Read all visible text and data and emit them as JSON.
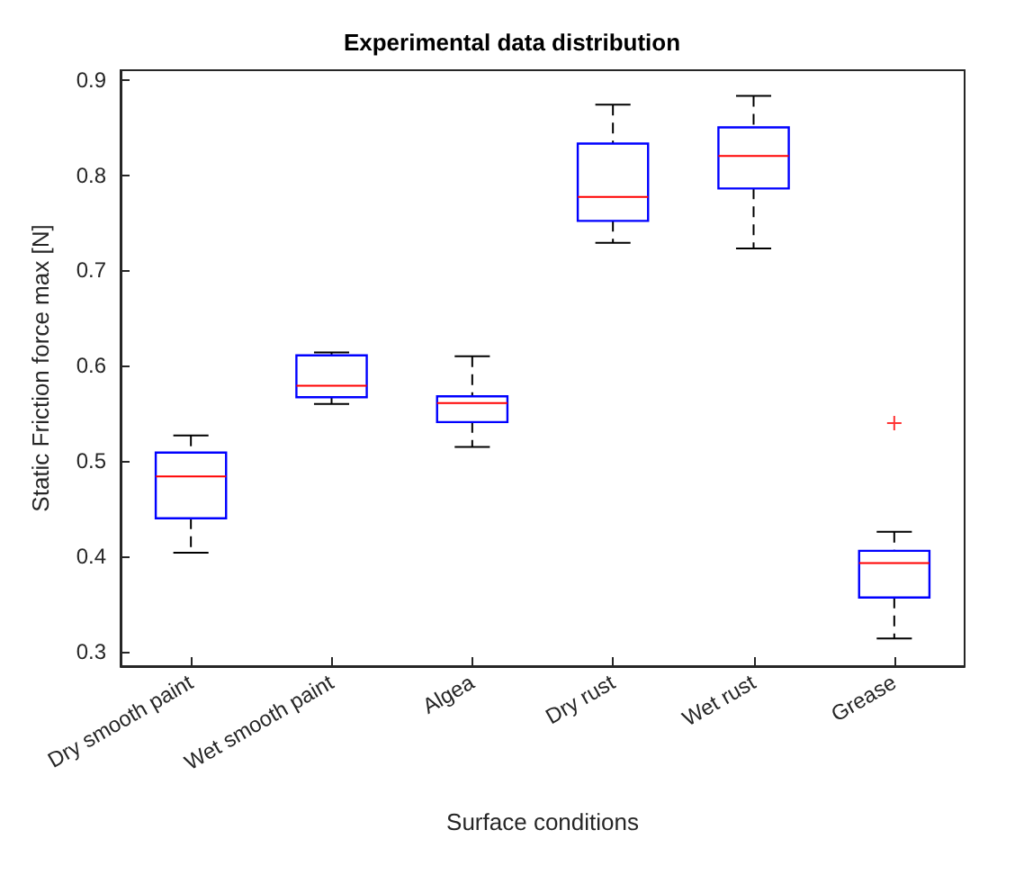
{
  "chart_data": {
    "type": "box",
    "title": "Experimental data distribution",
    "xlabel": "Surface conditions",
    "ylabel": "Static Friction force max [N]",
    "categories": [
      "Dry smooth paint",
      "Wet smooth paint",
      "Algea",
      "Dry rust",
      "Wet rust",
      "Grease"
    ],
    "ylim": [
      0.285,
      0.91
    ],
    "yticks": [
      0.3,
      0.4,
      0.5,
      0.6,
      0.7,
      0.8,
      0.9
    ],
    "grid": false,
    "series": [
      {
        "color": "#0000ff",
        "boxes": [
          {
            "low": 0.404,
            "q1": 0.44,
            "median": 0.484,
            "q3": 0.509,
            "high": 0.527
          },
          {
            "low": 0.56,
            "q1": 0.567,
            "median": 0.579,
            "q3": 0.611,
            "high": 0.614
          },
          {
            "low": 0.515,
            "q1": 0.541,
            "median": 0.561,
            "q3": 0.568,
            "high": 0.61
          },
          {
            "low": 0.729,
            "q1": 0.752,
            "median": 0.777,
            "q3": 0.833,
            "high": 0.874
          },
          {
            "low": 0.723,
            "q1": 0.786,
            "median": 0.82,
            "q3": 0.85,
            "high": 0.883
          },
          {
            "low": 0.314,
            "q1": 0.357,
            "median": 0.393,
            "q3": 0.406,
            "high": 0.426,
            "outliers": [
              0.54
            ]
          }
        ]
      }
    ]
  }
}
